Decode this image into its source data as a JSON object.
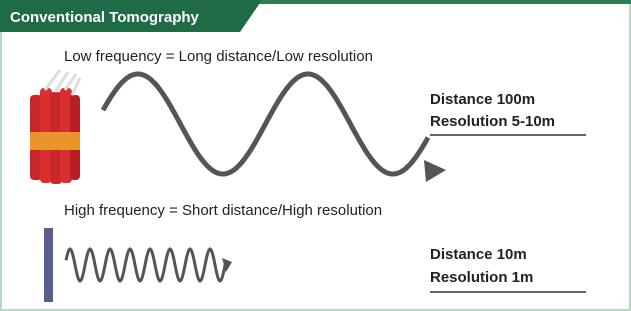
{
  "header": {
    "title": "Conventional Tomography"
  },
  "sections": [
    {
      "caption": "Low frequency = Long distance/Low resolution",
      "distance": "Distance 100m",
      "resolution": "Resolution 5-10m"
    },
    {
      "caption": "High frequency = Short distance/High resolution",
      "distance": "Distance 10m",
      "resolution": "Resolution 1m"
    }
  ]
}
